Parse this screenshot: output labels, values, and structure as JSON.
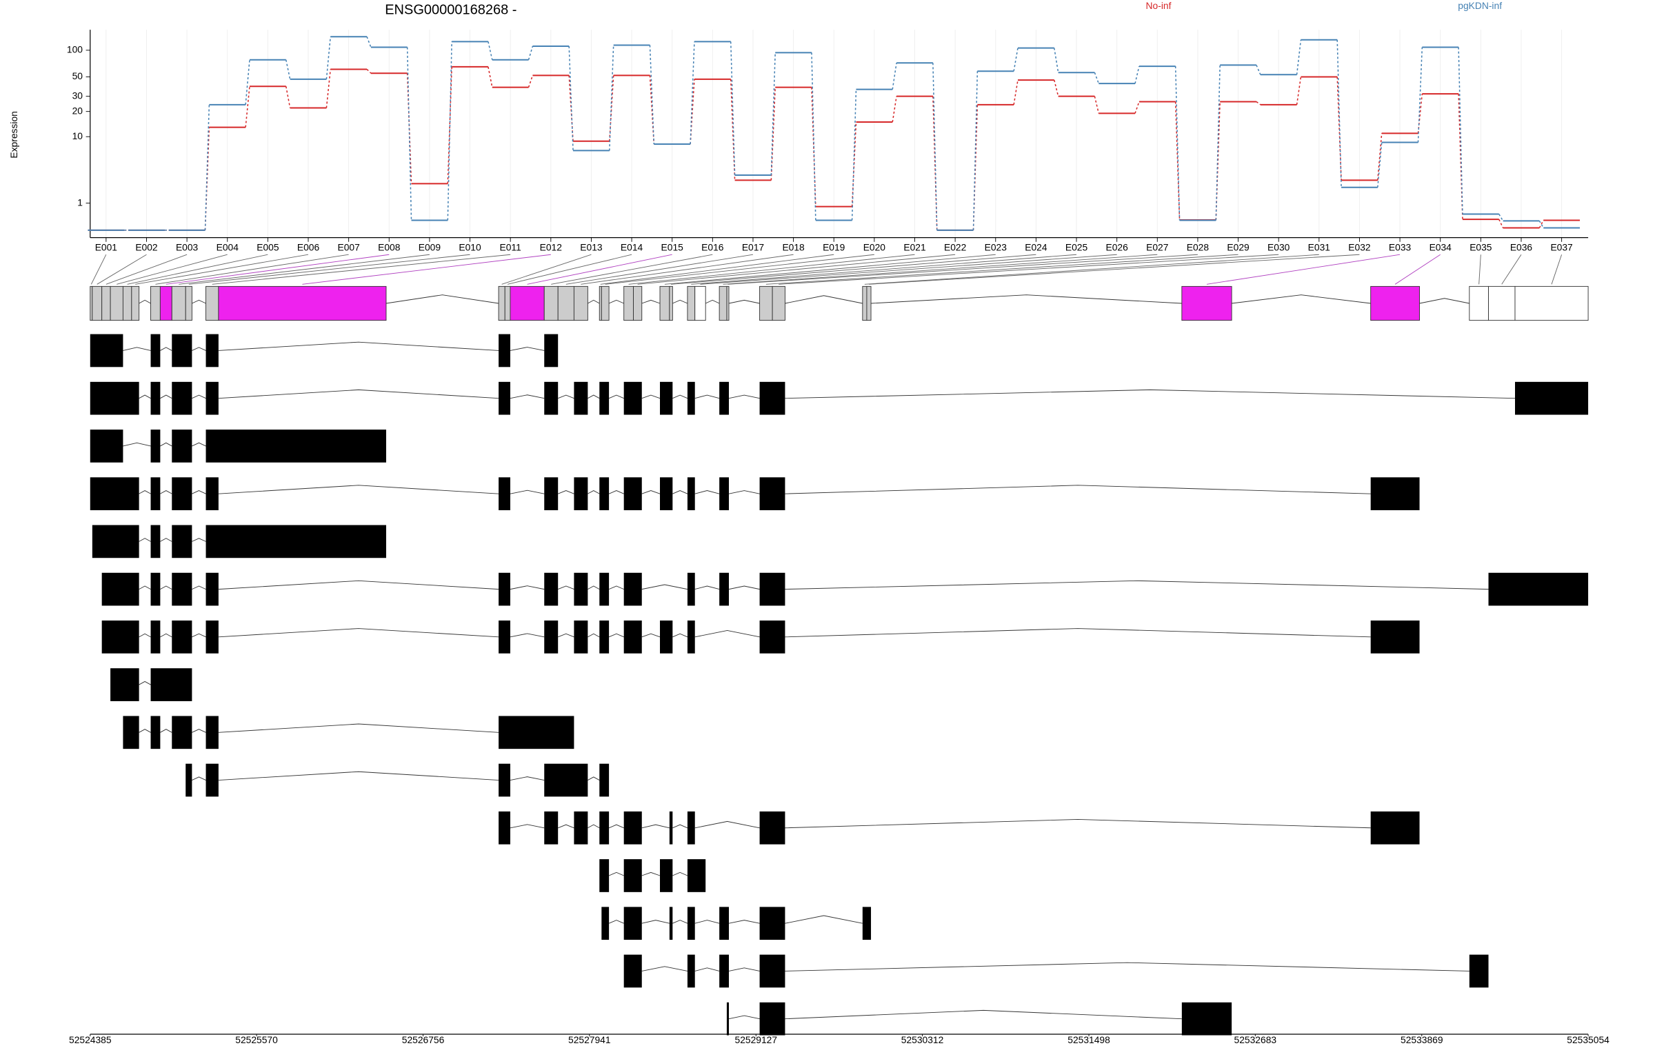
{
  "chart_data": {
    "type": "line",
    "title": "ENSG00000168268 -",
    "y_label": "Expression",
    "log_scale": true,
    "grid": true,
    "categories": [
      "E001",
      "E002",
      "E003",
      "E004",
      "E005",
      "E006",
      "E007",
      "E008",
      "E009",
      "E010",
      "E011",
      "E012",
      "E013",
      "E014",
      "E015",
      "E016",
      "E017",
      "E018",
      "E019",
      "E020",
      "E021",
      "E022",
      "E023",
      "E024",
      "E025",
      "E026",
      "E027",
      "E028",
      "E029",
      "E030",
      "E031",
      "E032",
      "E033",
      "E034",
      "E035",
      "E036",
      "E037"
    ],
    "series": [
      {
        "name": "No-inf",
        "color": "#d62728",
        "values": [
          0,
          0,
          0,
          13,
          39,
          22,
          61,
          55,
          2.3,
          65,
          38,
          52,
          8.8,
          52,
          8.1,
          47,
          2.6,
          38,
          0.83,
          15,
          30,
          0,
          24,
          46,
          30,
          19,
          26,
          0.3,
          26,
          24,
          50,
          2.6,
          11,
          32,
          0.32,
          0.06,
          0.29
        ]
      },
      {
        "name": "pgKDN-inf",
        "color": "#4682b4",
        "values": [
          0,
          0,
          0,
          24,
          78,
          47,
          142,
          108,
          0.29,
          125,
          78,
          111,
          6.7,
          114,
          8.1,
          125,
          3.1,
          94,
          0.29,
          36,
          72,
          0,
          58,
          106,
          56,
          42,
          66,
          0.29,
          68,
          53,
          131,
          2,
          8.5,
          108,
          0.51,
          0.27,
          0.06
        ]
      }
    ],
    "ylim": [
      0,
      170
    ],
    "yticks": [
      1,
      10,
      20,
      30,
      50,
      100
    ],
    "xlim": [
      52524385,
      52535054
    ],
    "xticks": [
      52524385,
      52525570,
      52526756,
      52527941,
      52529127,
      52530312,
      52531498,
      52532683,
      52533869,
      52535054
    ],
    "exons": [
      {
        "start": 52524385,
        "end": 52524400,
        "color": "#cccccc"
      },
      {
        "start": 52524400,
        "end": 52524468,
        "color": "#cccccc"
      },
      {
        "start": 52524468,
        "end": 52524529,
        "color": "#cccccc"
      },
      {
        "start": 52524529,
        "end": 52524619,
        "color": "#cccccc"
      },
      {
        "start": 52524619,
        "end": 52524680,
        "color": "#cccccc"
      },
      {
        "start": 52524680,
        "end": 52524733,
        "color": "#cccccc"
      },
      {
        "start": 52524816,
        "end": 52524884,
        "color": "#cccccc"
      },
      {
        "start": 52524884,
        "end": 52524967,
        "color": "#ee22ee"
      },
      {
        "start": 52524967,
        "end": 52525065,
        "color": "#cccccc"
      },
      {
        "start": 52525065,
        "end": 52525110,
        "color": "#cccccc"
      },
      {
        "start": 52525209,
        "end": 52525299,
        "color": "#cccccc"
      },
      {
        "start": 52525299,
        "end": 52526493,
        "color": "#ee22ee"
      },
      {
        "start": 52527294,
        "end": 52527339,
        "color": "#cccccc"
      },
      {
        "start": 52527339,
        "end": 52527377,
        "color": "#cccccc"
      },
      {
        "start": 52527377,
        "end": 52527619,
        "color": "#ee22ee"
      },
      {
        "start": 52527619,
        "end": 52527717,
        "color": "#cccccc"
      },
      {
        "start": 52527717,
        "end": 52527831,
        "color": "#cccccc"
      },
      {
        "start": 52527831,
        "end": 52527929,
        "color": "#cccccc"
      },
      {
        "start": 52528012,
        "end": 52528027,
        "color": "#cccccc"
      },
      {
        "start": 52528027,
        "end": 52528080,
        "color": "#cccccc"
      },
      {
        "start": 52528186,
        "end": 52528254,
        "color": "#cccccc"
      },
      {
        "start": 52528254,
        "end": 52528314,
        "color": "#cccccc"
      },
      {
        "start": 52528443,
        "end": 52528511,
        "color": "#cccccc"
      },
      {
        "start": 52528511,
        "end": 52528533,
        "color": "#cccccc"
      },
      {
        "start": 52528639,
        "end": 52528692,
        "color": "#cccccc"
      },
      {
        "start": 52528692,
        "end": 52528768,
        "color": "#ffffff"
      },
      {
        "start": 52528866,
        "end": 52528919,
        "color": "#cccccc"
      },
      {
        "start": 52528919,
        "end": 52528934,
        "color": "#cccccc"
      },
      {
        "start": 52529153,
        "end": 52529244,
        "color": "#cccccc"
      },
      {
        "start": 52529244,
        "end": 52529334,
        "color": "#cccccc"
      },
      {
        "start": 52529886,
        "end": 52529916,
        "color": "#cccccc"
      },
      {
        "start": 52529916,
        "end": 52529946,
        "color": "#cccccc"
      },
      {
        "start": 52532160,
        "end": 52532515,
        "color": "#ee22ee"
      },
      {
        "start": 52533505,
        "end": 52533853,
        "color": "#ee22ee"
      },
      {
        "start": 52534208,
        "end": 52534344,
        "color": "#ffffff"
      },
      {
        "start": 52534344,
        "end": 52534533,
        "color": "#ffffff"
      },
      {
        "start": 52534533,
        "end": 52535054,
        "color": "#ffffff"
      }
    ],
    "transcripts": [
      [
        [
          52524385,
          52524619
        ],
        [
          52524816,
          52524884
        ],
        [
          52524967,
          52525110
        ],
        [
          52525209,
          52525299
        ],
        [
          52527294,
          52527377
        ],
        [
          52527619,
          52527717
        ]
      ],
      [
        [
          52524385,
          52524733
        ],
        [
          52524816,
          52524884
        ],
        [
          52524967,
          52525110
        ],
        [
          52525209,
          52525299
        ],
        [
          52527294,
          52527377
        ],
        [
          52527619,
          52527717
        ],
        [
          52527831,
          52527929
        ],
        [
          52528012,
          52528080
        ],
        [
          52528186,
          52528314
        ],
        [
          52528443,
          52528533
        ],
        [
          52528639,
          52528692
        ],
        [
          52528866,
          52528934
        ],
        [
          52529153,
          52529334
        ],
        [
          52534533,
          52535054
        ]
      ],
      [
        [
          52524385,
          52524619
        ],
        [
          52524816,
          52524884
        ],
        [
          52524967,
          52525110
        ],
        [
          52525209,
          52526493
        ]
      ],
      [
        [
          52524385,
          52524733
        ],
        [
          52524816,
          52524884
        ],
        [
          52524967,
          52525110
        ],
        [
          52525209,
          52525299
        ],
        [
          52527294,
          52527377
        ],
        [
          52527619,
          52527717
        ],
        [
          52527831,
          52527929
        ],
        [
          52528012,
          52528080
        ],
        [
          52528186,
          52528314
        ],
        [
          52528443,
          52528533
        ],
        [
          52528639,
          52528692
        ],
        [
          52528866,
          52528934
        ],
        [
          52529153,
          52529334
        ],
        [
          52533505,
          52533853
        ]
      ],
      [
        [
          52524400,
          52524733
        ],
        [
          52524816,
          52524884
        ],
        [
          52524967,
          52525110
        ],
        [
          52525209,
          52526493
        ]
      ],
      [
        [
          52524468,
          52524733
        ],
        [
          52524816,
          52524884
        ],
        [
          52524967,
          52525110
        ],
        [
          52525209,
          52525299
        ],
        [
          52527294,
          52527377
        ],
        [
          52527619,
          52527717
        ],
        [
          52527831,
          52527929
        ],
        [
          52528012,
          52528080
        ],
        [
          52528186,
          52528314
        ],
        [
          52528639,
          52528692
        ],
        [
          52528866,
          52528934
        ],
        [
          52529153,
          52529334
        ],
        [
          52534344,
          52535054
        ]
      ],
      [
        [
          52524468,
          52524733
        ],
        [
          52524816,
          52524884
        ],
        [
          52524967,
          52525110
        ],
        [
          52525209,
          52525299
        ],
        [
          52527294,
          52527377
        ],
        [
          52527619,
          52527717
        ],
        [
          52527831,
          52527929
        ],
        [
          52528012,
          52528080
        ],
        [
          52528186,
          52528314
        ],
        [
          52528443,
          52528533
        ],
        [
          52528639,
          52528692
        ],
        [
          52529153,
          52529334
        ],
        [
          52533505,
          52533853
        ]
      ],
      [
        [
          52524529,
          52524733
        ],
        [
          52524816,
          52525110
        ]
      ],
      [
        [
          52524619,
          52524733
        ],
        [
          52524816,
          52524884
        ],
        [
          52524967,
          52525110
        ],
        [
          52525209,
          52525299
        ],
        [
          52527294,
          52527831
        ]
      ],
      [
        [
          52525065,
          52525110
        ],
        [
          52525209,
          52525299
        ],
        [
          52527294,
          52527377
        ],
        [
          52527619,
          52527929
        ],
        [
          52528012,
          52528080
        ]
      ],
      [
        [
          52527294,
          52527377
        ],
        [
          52527619,
          52527717
        ],
        [
          52527831,
          52527929
        ],
        [
          52528012,
          52528080
        ],
        [
          52528186,
          52528314
        ],
        [
          52528511,
          52528533
        ],
        [
          52528639,
          52528692
        ],
        [
          52529153,
          52529334
        ],
        [
          52533505,
          52533853
        ]
      ],
      [
        [
          52528012,
          52528080
        ],
        [
          52528186,
          52528314
        ],
        [
          52528443,
          52528533
        ],
        [
          52528639,
          52528768
        ]
      ],
      [
        [
          52528027,
          52528080
        ],
        [
          52528186,
          52528314
        ],
        [
          52528511,
          52528533
        ],
        [
          52528639,
          52528692
        ],
        [
          52528866,
          52528934
        ],
        [
          52529153,
          52529334
        ],
        [
          52529886,
          52529946
        ]
      ],
      [
        [
          52528186,
          52528314
        ],
        [
          52528639,
          52528692
        ],
        [
          52528866,
          52528934
        ],
        [
          52529153,
          52529334
        ],
        [
          52534208,
          52534344
        ]
      ],
      [
        [
          52528919,
          52528934
        ],
        [
          52529153,
          52529334
        ],
        [
          52532160,
          52532515
        ]
      ]
    ]
  }
}
